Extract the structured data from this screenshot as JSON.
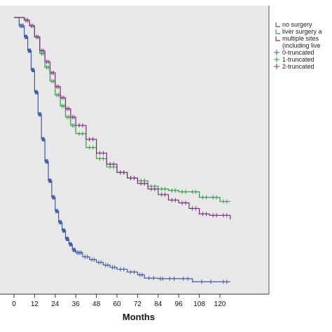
{
  "chart_data": {
    "type": "line",
    "subtype": "kaplan-meier",
    "title": "",
    "xlabel": "Months",
    "ylabel": "",
    "xlim": [
      -12,
      126
    ],
    "ylim": [
      0,
      1
    ],
    "x_ticks": [
      0,
      12,
      24,
      36,
      48,
      60,
      72,
      84,
      96,
      108,
      120
    ],
    "x_tick_labels": [
      "0",
      "12",
      "24",
      "36",
      "48",
      "60",
      "72",
      "84",
      "96",
      "108",
      "120"
    ],
    "grid": false,
    "legend_position": "top-right",
    "background": "#e8e8e8",
    "series": [
      {
        "name": "no surgery",
        "color": "#3b5ba8",
        "x": [
          0,
          3,
          6,
          8,
          10,
          12,
          14,
          16,
          18,
          20,
          22,
          24,
          26,
          28,
          30,
          32,
          34,
          36,
          40,
          44,
          48,
          52,
          56,
          60,
          66,
          72,
          76,
          84,
          88,
          96,
          104,
          120,
          126
        ],
        "y": [
          1.0,
          0.97,
          0.93,
          0.88,
          0.81,
          0.73,
          0.65,
          0.56,
          0.48,
          0.41,
          0.35,
          0.3,
          0.26,
          0.23,
          0.2,
          0.18,
          0.16,
          0.15,
          0.135,
          0.125,
          0.115,
          0.105,
          0.097,
          0.09,
          0.08,
          0.07,
          0.058,
          0.056,
          0.056,
          0.056,
          0.045,
          0.045,
          0.045
        ]
      },
      {
        "name": "liver surgery a",
        "color": "#2e9e3e",
        "x": [
          0,
          6,
          9,
          12,
          15,
          18,
          21,
          24,
          27,
          30,
          33,
          36,
          42,
          48,
          54,
          60,
          66,
          72,
          78,
          84,
          90,
          96,
          102,
          108,
          114,
          120,
          126
        ],
        "y": [
          1.0,
          0.99,
          0.97,
          0.93,
          0.87,
          0.82,
          0.77,
          0.72,
          0.68,
          0.64,
          0.61,
          0.58,
          0.53,
          0.49,
          0.46,
          0.44,
          0.42,
          0.41,
          0.39,
          0.38,
          0.375,
          0.37,
          0.37,
          0.35,
          0.35,
          0.335,
          0.335
        ]
      },
      {
        "name": "multiple sites (including live",
        "color": "#7b2a7e",
        "x": [
          0,
          6,
          9,
          12,
          15,
          18,
          21,
          24,
          27,
          30,
          33,
          36,
          42,
          48,
          54,
          60,
          66,
          72,
          78,
          84,
          90,
          96,
          102,
          108,
          114,
          120,
          126
        ],
        "y": [
          1.0,
          0.99,
          0.97,
          0.93,
          0.88,
          0.84,
          0.8,
          0.75,
          0.71,
          0.67,
          0.64,
          0.61,
          0.56,
          0.51,
          0.47,
          0.44,
          0.42,
          0.4,
          0.38,
          0.36,
          0.34,
          0.33,
          0.31,
          0.29,
          0.285,
          0.285,
          0.27
        ]
      }
    ],
    "legend_entries": [
      {
        "label": "no surgery",
        "color": "#3b5ba8",
        "symbol": "step"
      },
      {
        "label": "liver surgery a",
        "color": "#2e9e3e",
        "symbol": "step"
      },
      {
        "label": "multiple sites",
        "color": "#7b2a7e",
        "symbol": "step"
      },
      {
        "label": "(including live",
        "color": "#7b2a7e",
        "symbol": "none"
      },
      {
        "label": "0-truncated",
        "color": "#3b5ba8",
        "symbol": "cross"
      },
      {
        "label": "1-truncated",
        "color": "#2e9e3e",
        "symbol": "cross"
      },
      {
        "label": "2-truncated",
        "color": "#7b2a7e",
        "symbol": "cross"
      }
    ]
  }
}
